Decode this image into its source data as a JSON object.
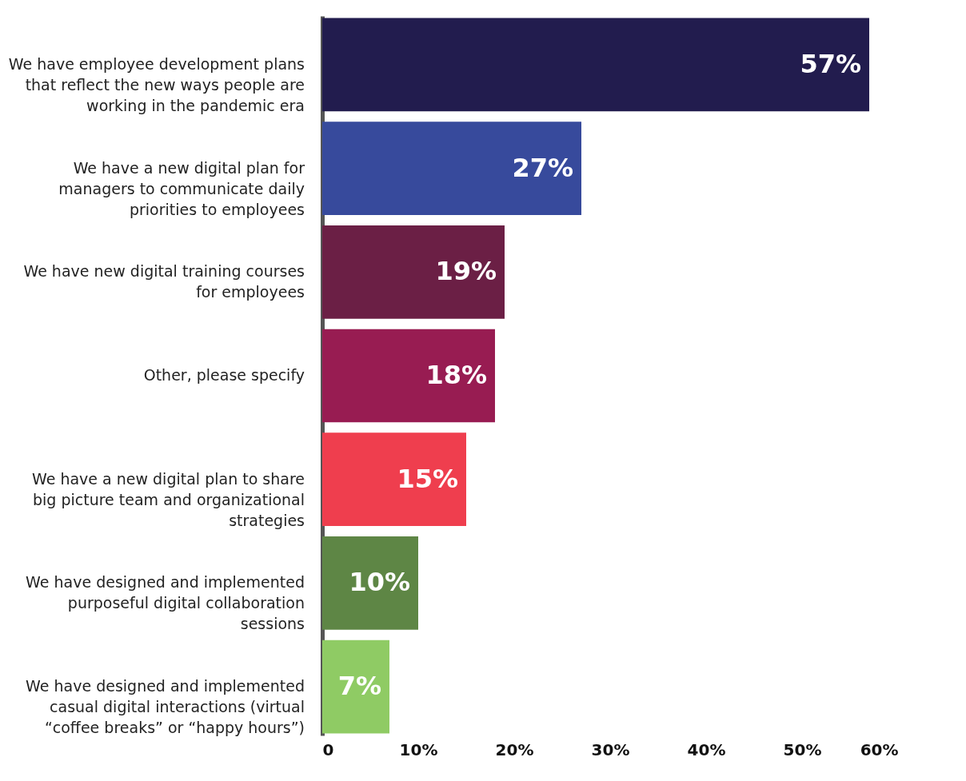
{
  "chart_data": {
    "type": "bar",
    "orientation": "horizontal",
    "categories": [
      "We have employee development plans that reflect the new ways people are working in the pandemic era",
      "We have a new digital plan for managers to communicate daily priorities to employees",
      "We have new digital training courses for employees",
      "Other, please specify",
      "We have a new digital plan to share big picture team and organizational strategies",
      "We have designed and implemented purposeful digital collaboration sessions",
      "We have designed and implemented casual digital interactions (virtual “coffee breaks” or “happy hours”)"
    ],
    "values": [
      57,
      27,
      19,
      18,
      15,
      10,
      7
    ],
    "colors": [
      "#221c4e",
      "#374a9c",
      "#6b1f45",
      "#981c52",
      "#ef3e4e",
      "#5e8645",
      "#8fcb64"
    ],
    "value_labels": [
      "57%",
      "27%",
      "19%",
      "18%",
      "15%",
      "10%",
      "7%"
    ],
    "xlim": [
      0,
      60
    ],
    "xticks": [
      0,
      {
        "value": 10,
        "label": "10%"
      },
      {
        "value": 20,
        "label": "20%"
      },
      {
        "value": 30,
        "label": "30%"
      },
      {
        "value": 40,
        "label": "40%"
      },
      {
        "value": 50,
        "label": "50%"
      },
      {
        "value": 60,
        "label": "60%"
      }
    ],
    "grid": false
  }
}
